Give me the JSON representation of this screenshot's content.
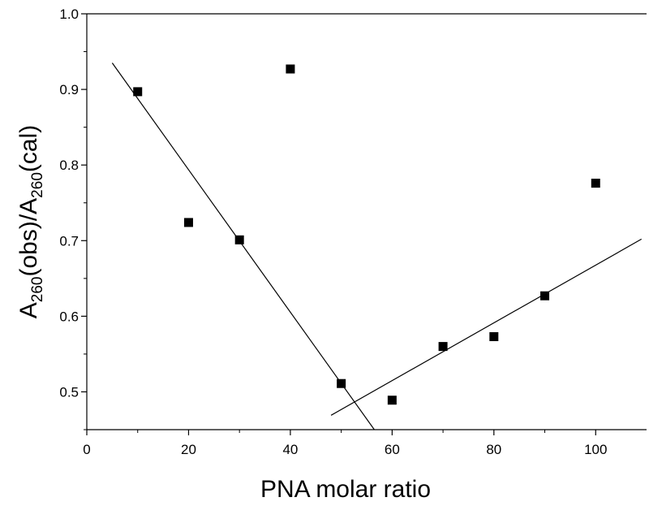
{
  "chart_data": {
    "type": "scatter",
    "title": "",
    "xlabel": "PNA molar ratio",
    "ylabel": {
      "parts": [
        {
          "text": "A",
          "sub": false
        },
        {
          "text": "260",
          "sub": true
        },
        {
          "text": "(obs)/A",
          "sub": false
        },
        {
          "text": "260",
          "sub": true
        },
        {
          "text": "(cal)",
          "sub": false
        }
      ]
    },
    "xlim": [
      0,
      110
    ],
    "ylim": [
      0.45,
      1.0
    ],
    "x_ticks": [
      0,
      20,
      40,
      60,
      80,
      100
    ],
    "y_ticks": [
      0.5,
      0.6,
      0.7,
      0.8,
      0.9,
      1.0
    ],
    "x_tick_labels": [
      "0",
      "20",
      "40",
      "60",
      "80",
      "100"
    ],
    "y_tick_labels": [
      "0.5",
      "0.6",
      "0.7",
      "0.8",
      "0.9",
      "1.0"
    ],
    "grid": false,
    "legend": "none",
    "series": [
      {
        "marker": "square",
        "color": "#000000",
        "points": [
          {
            "x": 10,
            "y": 0.897
          },
          {
            "x": 20,
            "y": 0.724
          },
          {
            "x": 30,
            "y": 0.701
          },
          {
            "x": 40,
            "y": 0.927
          },
          {
            "x": 50,
            "y": 0.511
          },
          {
            "x": 60,
            "y": 0.489
          },
          {
            "x": 70,
            "y": 0.56
          },
          {
            "x": 80,
            "y": 0.573
          },
          {
            "x": 90,
            "y": 0.627
          },
          {
            "x": 100,
            "y": 0.776
          }
        ]
      }
    ],
    "fit_lines": [
      {
        "x1": 5,
        "y1": 0.935,
        "x2": 56.5,
        "y2": 0.45
      },
      {
        "x1": 48,
        "y1": 0.469,
        "x2": 109,
        "y2": 0.702
      }
    ]
  }
}
